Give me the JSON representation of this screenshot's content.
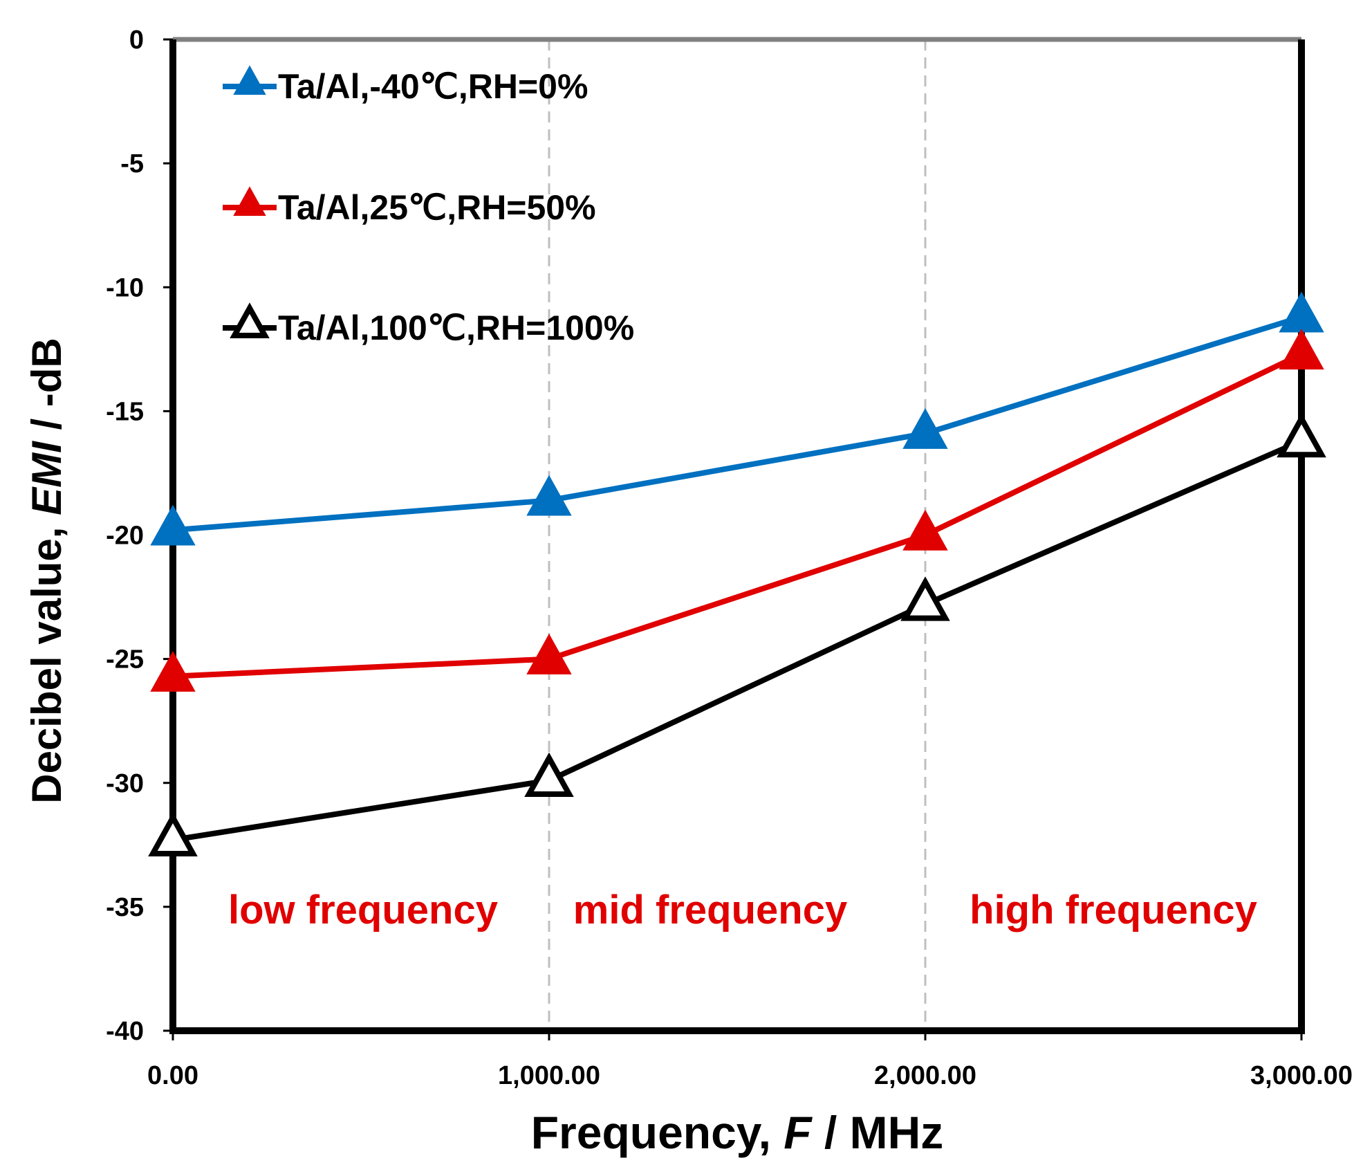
{
  "chart_data": {
    "type": "line",
    "x": [
      0,
      1000,
      2000,
      3000
    ],
    "x_tick_labels": [
      "0.00",
      "1,000.00",
      "2,000.00",
      "3,000.00"
    ],
    "xlim": [
      0,
      3000
    ],
    "ylim": [
      -40,
      0
    ],
    "y_ticks": [
      0,
      -5,
      -10,
      -15,
      -20,
      -25,
      -30,
      -35,
      -40
    ],
    "y_tick_labels": [
      "0",
      "-5",
      "-10",
      "-15",
      "-20",
      "-25",
      "-30",
      "-35",
      "-40"
    ],
    "xlabel": {
      "prefix": "Frequency, ",
      "italic": "F",
      "suffix": " / MHz"
    },
    "ylabel": {
      "prefix": "Decibel value, ",
      "italic": "EMI",
      "suffix": " / -dB"
    },
    "series": [
      {
        "name": "Ta/Al,-40℃,RH=0%",
        "color": "#0070c0",
        "marker": "filled-triangle",
        "values": [
          -19.8,
          -18.6,
          -15.9,
          -11.2
        ]
      },
      {
        "name": "Ta/Al,25℃,RH=50%",
        "color": "#e00000",
        "marker": "filled-triangle",
        "values": [
          -25.7,
          -25.0,
          -20.0,
          -12.7
        ]
      },
      {
        "name": "Ta/Al,100℃,RH=100%",
        "color": "#000000",
        "marker": "open-triangle",
        "values": [
          -32.3,
          -29.9,
          -22.8,
          -16.2
        ]
      }
    ],
    "vertical_gridlines_at": [
      1000,
      2000
    ],
    "legend_position": "top-left",
    "region_labels": [
      {
        "text": "low frequency",
        "color": "#e00000"
      },
      {
        "text": "mid frequency",
        "color": "#e00000"
      },
      {
        "text": "high frequency",
        "color": "#e00000"
      }
    ]
  }
}
